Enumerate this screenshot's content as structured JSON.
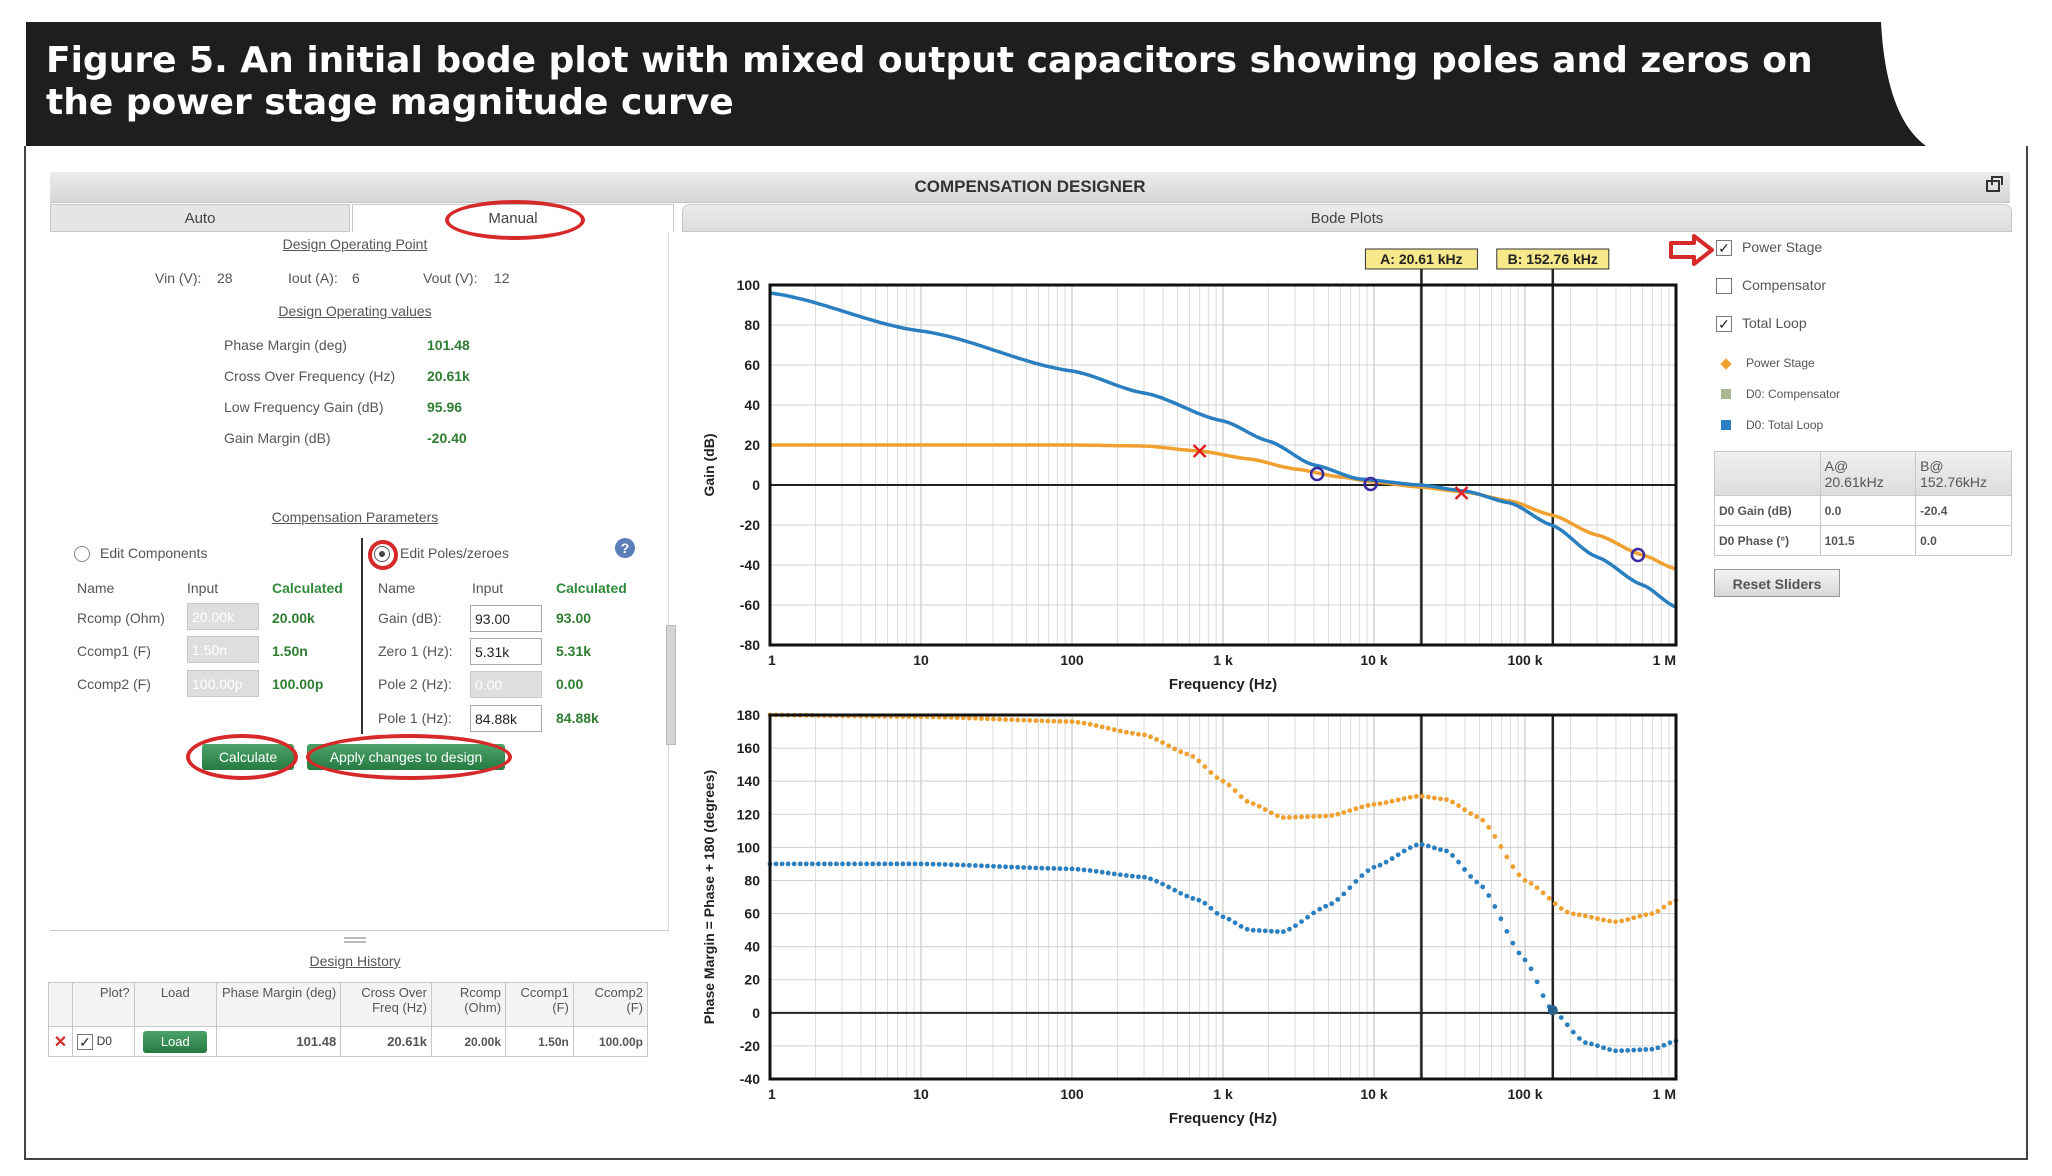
{
  "figure_title": "Figure 5. An initial bode plot with mixed output capacitors showing poles and zeros on the power stage magnitude curve",
  "app": {
    "title": "COMPENSATION DESIGNER"
  },
  "tabs": {
    "auto": "Auto",
    "manual": "Manual",
    "bode": "Bode Plots"
  },
  "operating_point": {
    "heading": "Design Operating Point",
    "vin_label": "Vin (V):",
    "vin": "28",
    "iout_label": "Iout (A):",
    "iout": "6",
    "vout_label": "Vout (V):",
    "vout": "12"
  },
  "operating_values": {
    "heading": "Design Operating values",
    "rows": [
      {
        "label": "Phase Margin (deg)",
        "value": "101.48"
      },
      {
        "label": "Cross Over Frequency (Hz)",
        "value": "20.61k"
      },
      {
        "label": "Low Frequency Gain (dB)",
        "value": "95.96"
      },
      {
        "label": "Gain Margin (dB)",
        "value": "-20.40"
      }
    ]
  },
  "comp_params": {
    "heading": "Compensation Parameters",
    "edit_components": "Edit Components",
    "edit_poles": "Edit Poles/zeroes",
    "help": "?",
    "col_name": "Name",
    "col_input": "Input",
    "col_calc": "Calculated",
    "components": [
      {
        "name": "Rcomp (Ohm)",
        "input": "20.00k",
        "calc": "20.00k"
      },
      {
        "name": "Ccomp1 (F)",
        "input": "1.50n",
        "calc": "1.50n"
      },
      {
        "name": "Ccomp2 (F)",
        "input": "100.00p",
        "calc": "100.00p"
      }
    ],
    "poles": [
      {
        "name": "Gain (dB):",
        "input": "93.00",
        "calc": "93.00"
      },
      {
        "name": "Zero 1 (Hz):",
        "input": "5.31k",
        "calc": "5.31k"
      },
      {
        "name": "Pole 2 (Hz):",
        "input": "0.00",
        "calc": "0.00"
      },
      {
        "name": "Pole 1 (Hz):",
        "input": "84.88k",
        "calc": "84.88k"
      }
    ],
    "calculate": "Calculate",
    "apply": "Apply changes to design"
  },
  "history": {
    "heading": "Design History",
    "cols": [
      "Plot?",
      "Load",
      "Phase Margin (deg)",
      "Cross Over Freq (Hz)",
      "Rcomp (Ohm)",
      "Ccomp1 (F)",
      "Ccomp2 (F)"
    ],
    "row": {
      "id": "D0",
      "load": "Load",
      "pm": "101.48",
      "fc": "20.61k",
      "rcomp": "20.00k",
      "ccomp1": "1.50n",
      "ccomp2": "100.00p"
    }
  },
  "legend": {
    "power_stage": "Power Stage",
    "compensator": "Compensator",
    "total_loop": "Total Loop",
    "key_power": "Power Stage",
    "key_comp": "D0: Compensator",
    "key_total": "D0: Total Loop",
    "colors": {
      "power": "#f0a030",
      "comp": "#a8b890",
      "total": "#2a7fc0"
    }
  },
  "cursor_table": {
    "col_a": "A@ 20.61kHz",
    "col_b": "B@ 152.76kHz",
    "rows": [
      {
        "label": "D0 Gain (dB)",
        "a": "0.0",
        "b": "-20.4"
      },
      {
        "label": "D0 Phase (°)",
        "a": "101.5",
        "b": "0.0"
      }
    ],
    "reset": "Reset Sliders"
  },
  "cursors": {
    "a_label": "A: 20.61 kHz",
    "a_hz": 20610,
    "b_label": "B: 152.76 kHz",
    "b_hz": 152760
  },
  "chart_data": [
    {
      "type": "line",
      "title": "",
      "xlabel": "Frequency (Hz)",
      "ylabel": "Gain (dB)",
      "xscale": "log",
      "xlim": [
        1,
        1000000
      ],
      "ylim": [
        -80,
        100
      ],
      "xticks": [
        "1",
        "10",
        "100",
        "1 k",
        "10 k",
        "100 k",
        "1 M"
      ],
      "yticks": [
        100,
        80,
        60,
        40,
        20,
        0,
        -20,
        -40,
        -60,
        -80
      ],
      "series": [
        {
          "name": "Power Stage",
          "color": "#f0a030",
          "x": [
            1,
            100,
            300,
            700,
            1500,
            3000,
            6000,
            10000,
            20000,
            40000,
            80000,
            150000,
            300000,
            600000,
            1000000
          ],
          "y": [
            20,
            20,
            19.5,
            17,
            13,
            8,
            4,
            1.5,
            -1,
            -3.5,
            -8,
            -15,
            -25,
            -35,
            -42
          ]
        },
        {
          "name": "D0: Total Loop",
          "color": "#2a7fc0",
          "x": [
            1,
            10,
            100,
            300,
            1000,
            2000,
            4000,
            8000,
            20000,
            40000,
            80000,
            150000,
            300000,
            600000,
            1000000
          ],
          "y": [
            96,
            77,
            57,
            46,
            32,
            22,
            10,
            3,
            0,
            -3,
            -9,
            -20,
            -36,
            -50,
            -61
          ]
        }
      ],
      "pole_markers": [
        {
          "x": 700,
          "y": 17
        },
        {
          "x": 38000,
          "y": -4
        }
      ],
      "zero_markers": [
        {
          "x": 4200,
          "y": 5.5
        },
        {
          "x": 9500,
          "y": 0.5
        },
        {
          "x": 560000,
          "y": -35
        }
      ]
    },
    {
      "type": "scatter",
      "title": "",
      "xlabel": "Frequency (Hz)",
      "ylabel": "Phase Margin = Phase + 180 (degrees)",
      "xscale": "log",
      "xlim": [
        1,
        1000000
      ],
      "ylim": [
        -40,
        180
      ],
      "xticks": [
        "1",
        "10",
        "100",
        "1 k",
        "10 k",
        "100 k",
        "1 M"
      ],
      "yticks": [
        180,
        160,
        140,
        120,
        100,
        80,
        60,
        40,
        20,
        0,
        -20,
        -40
      ],
      "series": [
        {
          "name": "Power Stage",
          "color": "#f0a030",
          "x": [
            1,
            10,
            100,
            300,
            600,
            1000,
            1500,
            2500,
            5000,
            10000,
            20000,
            30000,
            50000,
            100000,
            200000,
            400000,
            700000,
            1000000
          ],
          "y": [
            180,
            179,
            176,
            168,
            156,
            140,
            127,
            118,
            119,
            126,
            131,
            129,
            118,
            80,
            60,
            55,
            60,
            68
          ]
        },
        {
          "name": "D0: Total Loop",
          "color": "#2a7fc0",
          "x": [
            1,
            10,
            100,
            300,
            700,
            1000,
            1500,
            2500,
            5000,
            10000,
            20000,
            30000,
            50000,
            100000,
            150000,
            250000,
            400000,
            700000,
            1000000
          ],
          "y": [
            90,
            90,
            87,
            82,
            68,
            58,
            50,
            49,
            65,
            88,
            102,
            98,
            78,
            32,
            2,
            -18,
            -23,
            -22,
            -17
          ]
        }
      ]
    }
  ]
}
